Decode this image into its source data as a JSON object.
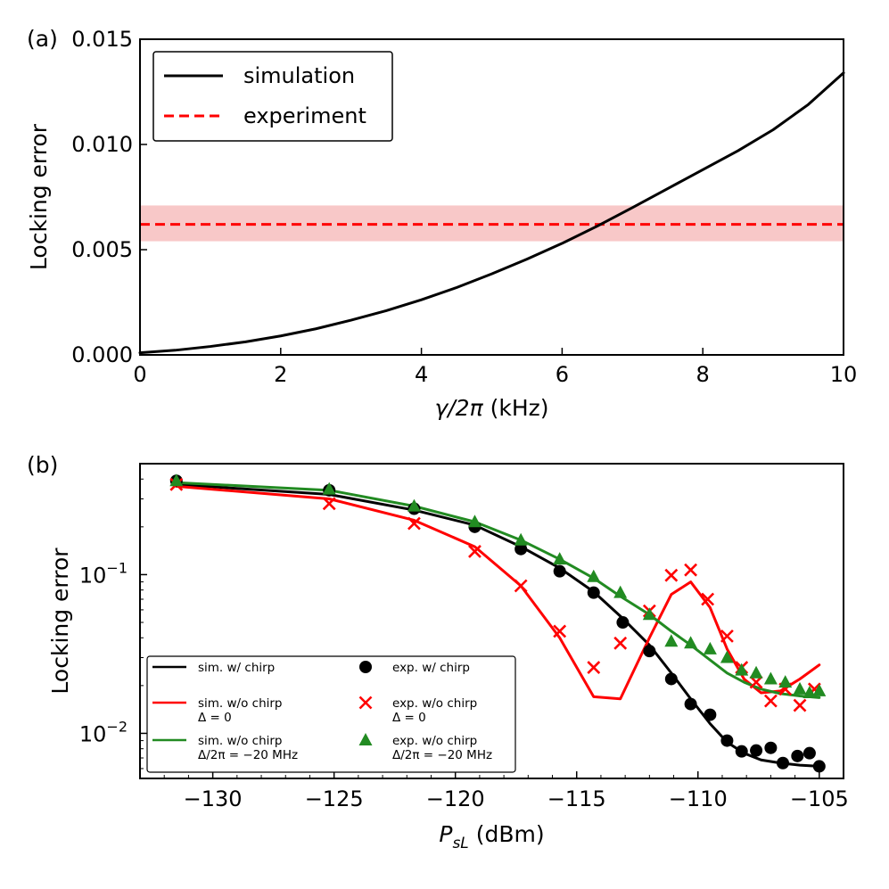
{
  "chart_data": [
    {
      "panel": "(a)",
      "type": "line",
      "xlabel": "γ/2π (kHz)",
      "ylabel": "Locking error",
      "xlim": [
        0,
        10
      ],
      "ylim": [
        0,
        0.015
      ],
      "xticks": [
        0,
        2,
        4,
        6,
        8,
        10
      ],
      "xtick_labels": [
        "0",
        "2",
        "4",
        "6",
        "8",
        "10"
      ],
      "yticks": [
        0,
        0.005,
        0.01,
        0.015
      ],
      "ytick_labels": [
        "0.000",
        "0.005",
        "0.010",
        "0.015"
      ],
      "legend_position": "top-left",
      "legend": [
        "simulation",
        "experiment"
      ],
      "series": [
        {
          "name": "simulation",
          "color": "#000000",
          "style": "solid",
          "x": [
            0,
            0.5,
            1,
            1.5,
            2,
            2.5,
            3,
            3.5,
            4,
            4.5,
            5,
            5.5,
            6,
            6.5,
            7,
            7.5,
            8,
            8.5,
            9,
            9.5,
            10
          ],
          "y": [
            0.0001,
            0.00022,
            0.0004,
            0.00062,
            0.0009,
            0.00124,
            0.00165,
            0.0021,
            0.00262,
            0.0032,
            0.00385,
            0.00455,
            0.0053,
            0.00612,
            0.007,
            0.0079,
            0.0088,
            0.0097,
            0.0107,
            0.0119,
            0.0134
          ]
        },
        {
          "name": "experiment",
          "color": "#ff0000",
          "style": "dashed",
          "value": 0.0062,
          "band": [
            0.0054,
            0.0071
          ],
          "band_color": "#f8c8c8"
        }
      ]
    },
    {
      "panel": "(b)",
      "type": "line+scatter",
      "xlabel": "P",
      "xlabel_sub": "sL",
      "xlabel_unit": " (dBm)",
      "ylabel": "Locking error",
      "yscale": "log",
      "xlim": [
        -133,
        -104
      ],
      "ylim": [
        0.0052,
        0.5
      ],
      "xticks": [
        -130,
        -125,
        -120,
        -115,
        -110,
        -105
      ],
      "xtick_labels": [
        "−130",
        "−125",
        "−120",
        "−115",
        "−110",
        "−105"
      ],
      "yticks": [
        0.01,
        0.1
      ],
      "ytick_labels": [
        {
          "base": "10",
          "exp": "−2"
        },
        {
          "base": "10",
          "exp": "−1"
        }
      ],
      "legend_position": "bottom-left",
      "legend": [
        {
          "label": "sim. w/ chirp",
          "label2": ""
        },
        {
          "label": "sim. w/o chirp",
          "label2": "Δ = 0"
        },
        {
          "label": "sim. w/o chirp",
          "label2": "Δ/2π = −20 MHz"
        },
        {
          "label": "exp. w/ chirp",
          "label2": ""
        },
        {
          "label": "exp. w/o chirp",
          "label2": "Δ = 0"
        },
        {
          "label": "exp. w/o chirp",
          "label2": "Δ/2π = −20 MHz"
        }
      ],
      "lines": [
        {
          "name": "sim. w/ chirp",
          "color": "#000000",
          "x": [
            -131.5,
            -125.2,
            -121.7,
            -119.2,
            -117.3,
            -115.7,
            -114.3,
            -113.1,
            -112.0,
            -111.1,
            -110.3,
            -109.5,
            -108.8,
            -108.1,
            -107.4,
            -106.6,
            -105.8,
            -105.0
          ],
          "y": [
            0.37,
            0.32,
            0.255,
            0.205,
            0.15,
            0.11,
            0.078,
            0.053,
            0.036,
            0.024,
            0.0165,
            0.0115,
            0.0088,
            0.0075,
            0.0068,
            0.0065,
            0.0063,
            0.0062
          ]
        },
        {
          "name": "sim. w/o chirp Δ = 0",
          "color": "#ff0000",
          "x": [
            -131.5,
            -125.2,
            -121.7,
            -119.2,
            -117.3,
            -115.7,
            -114.3,
            -113.2,
            -112.0,
            -111.1,
            -110.3,
            -109.5,
            -108.8,
            -108.1,
            -107.4,
            -106.6,
            -105.8,
            -105.0
          ],
          "y": [
            0.36,
            0.3,
            0.22,
            0.15,
            0.085,
            0.04,
            0.017,
            0.0165,
            0.04,
            0.075,
            0.09,
            0.062,
            0.034,
            0.022,
            0.018,
            0.0185,
            0.022,
            0.027
          ]
        },
        {
          "name": "sim. w/o chirp Δ/2π = −20 MHz",
          "color": "#228b22",
          "x": [
            -131.5,
            -125.2,
            -121.7,
            -119.2,
            -117.3,
            -115.7,
            -114.3,
            -113.2,
            -112.0,
            -111.1,
            -110.3,
            -109.5,
            -108.8,
            -108.1,
            -107.4,
            -106.6,
            -105.8,
            -105.0
          ],
          "y": [
            0.38,
            0.34,
            0.27,
            0.215,
            0.165,
            0.125,
            0.095,
            0.073,
            0.056,
            0.044,
            0.036,
            0.029,
            0.024,
            0.021,
            0.019,
            0.0178,
            0.0172,
            0.0168
          ]
        }
      ],
      "scatter": [
        {
          "name": "exp. w/ chirp",
          "marker": "circle",
          "color": "#000000",
          "x": [
            -131.5,
            -125.2,
            -121.7,
            -119.2,
            -117.3,
            -115.7,
            -114.3,
            -113.1,
            -112.0,
            -111.1,
            -110.3,
            -109.5,
            -108.8,
            -108.2,
            -107.6,
            -107.0,
            -106.5,
            -105.9,
            -105.4,
            -105.0
          ],
          "y": [
            0.39,
            0.34,
            0.26,
            0.2,
            0.145,
            0.105,
            0.077,
            0.05,
            0.033,
            0.022,
            0.0153,
            0.0131,
            0.009,
            0.0077,
            0.0078,
            0.0081,
            0.0065,
            0.0072,
            0.0075,
            0.0062
          ]
        },
        {
          "name": "exp. w/o chirp Δ = 0",
          "marker": "cross",
          "color": "#ff0000",
          "x": [
            -131.5,
            -125.2,
            -121.7,
            -119.2,
            -117.3,
            -115.7,
            -114.3,
            -113.2,
            -112.0,
            -111.1,
            -110.3,
            -109.6,
            -108.8,
            -108.2,
            -107.6,
            -107.0,
            -106.4,
            -105.8,
            -105.2
          ],
          "y": [
            0.37,
            0.28,
            0.21,
            0.14,
            0.085,
            0.044,
            0.026,
            0.037,
            0.059,
            0.099,
            0.107,
            0.07,
            0.041,
            0.026,
            0.021,
            0.016,
            0.019,
            0.015,
            0.019
          ]
        },
        {
          "name": "exp. w/o chirp Δ/2π = −20 MHz",
          "marker": "triangle",
          "color": "#228b22",
          "x": [
            -131.5,
            -125.2,
            -121.7,
            -119.2,
            -117.3,
            -115.7,
            -114.3,
            -113.2,
            -112.0,
            -111.1,
            -110.3,
            -109.5,
            -108.8,
            -108.2,
            -107.6,
            -107.0,
            -106.4,
            -105.8,
            -105.4,
            -105.0
          ],
          "y": [
            0.39,
            0.345,
            0.27,
            0.215,
            0.165,
            0.125,
            0.097,
            0.077,
            0.056,
            0.038,
            0.037,
            0.034,
            0.03,
            0.025,
            0.024,
            0.022,
            0.021,
            0.019,
            0.018,
            0.0185
          ]
        }
      ]
    }
  ]
}
